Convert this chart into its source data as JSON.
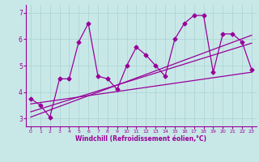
{
  "background_color": "#c8e8e8",
  "line_color": "#990099",
  "grid_color": "#b0d4d4",
  "xlabel": "Windchill (Refroidissement éolien,°C)",
  "xlim": [
    -0.5,
    23.5
  ],
  "ylim": [
    2.7,
    7.3
  ],
  "yticks": [
    3,
    4,
    5,
    6,
    7
  ],
  "xticks": [
    0,
    1,
    2,
    3,
    4,
    5,
    6,
    7,
    8,
    9,
    10,
    11,
    12,
    13,
    14,
    15,
    16,
    17,
    18,
    19,
    20,
    21,
    22,
    23
  ],
  "series1_x": [
    0,
    1,
    2,
    3,
    4,
    5,
    6,
    7,
    8,
    9,
    10,
    11,
    12,
    13,
    14,
    15,
    16,
    17,
    18,
    19,
    20,
    21,
    22,
    23
  ],
  "series1_y": [
    3.75,
    3.5,
    3.05,
    4.5,
    4.5,
    5.9,
    6.6,
    4.6,
    4.5,
    4.1,
    5.0,
    5.7,
    5.4,
    5.0,
    4.6,
    6.0,
    6.6,
    6.9,
    6.9,
    4.75,
    6.2,
    6.2,
    5.9,
    4.85
  ],
  "trend1_x": [
    0,
    23
  ],
  "trend1_y": [
    3.55,
    4.75
  ],
  "trend2_x": [
    0,
    23
  ],
  "trend2_y": [
    3.25,
    5.85
  ],
  "trend3_x": [
    0,
    23
  ],
  "trend3_y": [
    3.05,
    6.15
  ],
  "marker": "D",
  "markersize": 2.5,
  "linewidth": 0.9
}
